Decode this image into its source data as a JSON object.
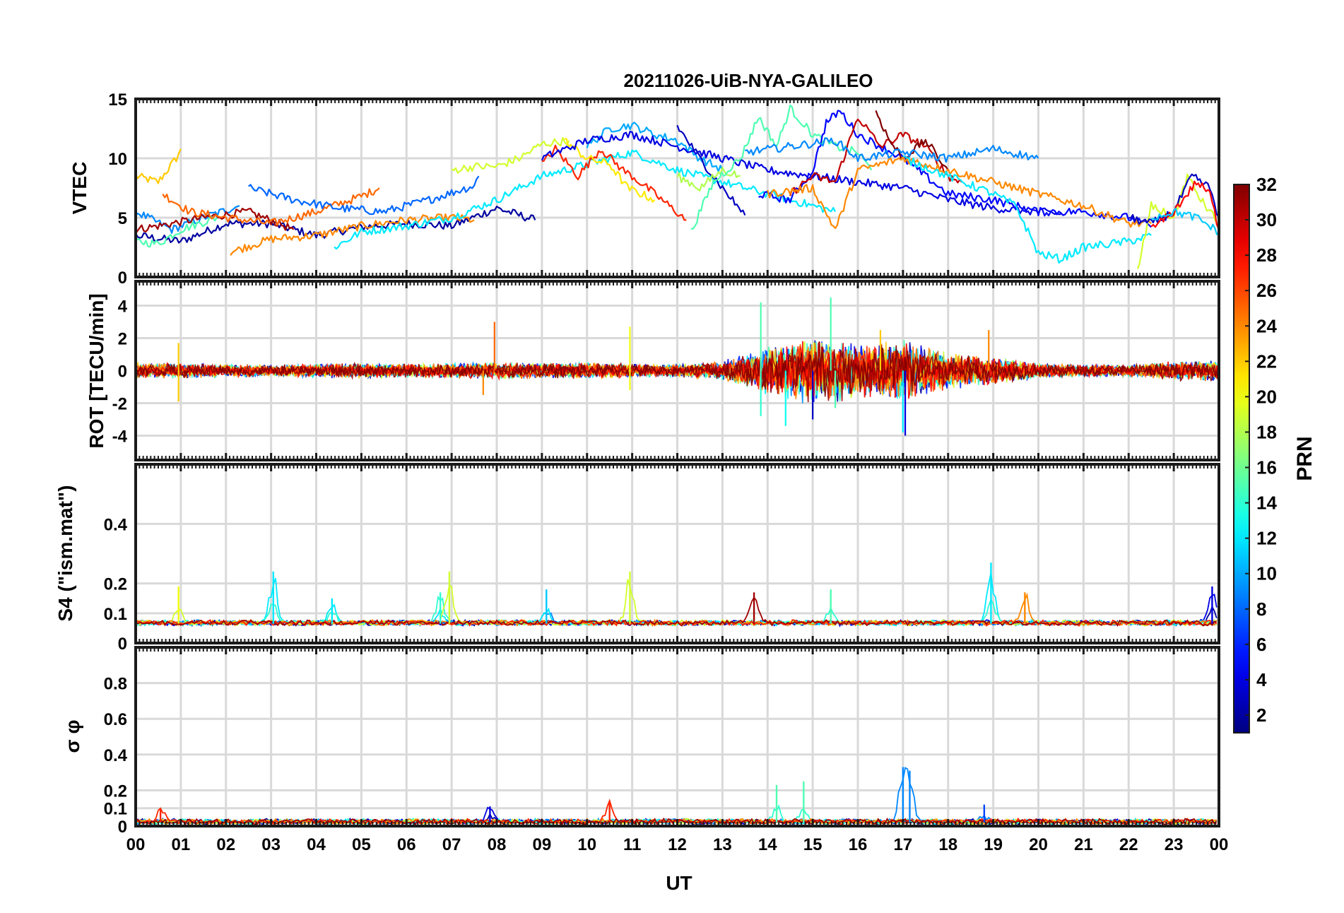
{
  "chart_data": {
    "type": "line",
    "title": "20211026-UiB-NYA-GALILEO",
    "xlabel": "UT",
    "x_ticks": [
      "00",
      "01",
      "02",
      "03",
      "04",
      "05",
      "06",
      "07",
      "08",
      "09",
      "10",
      "11",
      "12",
      "13",
      "14",
      "15",
      "16",
      "17",
      "18",
      "19",
      "20",
      "21",
      "22",
      "23",
      "00"
    ],
    "xlim": [
      0,
      24
    ],
    "grid": true,
    "colormap": "jet",
    "colorbar": {
      "label": "PRN",
      "range": [
        1,
        32
      ],
      "ticks": [
        "2",
        "4",
        "6",
        "8",
        "10",
        "12",
        "14",
        "16",
        "18",
        "20",
        "22",
        "24",
        "26",
        "28",
        "30",
        "32"
      ],
      "placement": "right"
    },
    "panels": [
      {
        "name": "vtec",
        "ylabel": "VTEC",
        "ylim": [
          0,
          15
        ],
        "y_ticks": [
          "0",
          "5",
          "10",
          "15"
        ],
        "series": [
          {
            "prn": 22,
            "x": [
              0.0,
              0.5,
              0.9,
              1.0
            ],
            "y": [
              8.5,
              8,
              10,
              10.8
            ]
          },
          {
            "prn": 2,
            "x": [
              0.0,
              1.0,
              2.0,
              3.0,
              4.0,
              5.0,
              6.0,
              7.0,
              8.0,
              8.85
            ],
            "y": [
              3.5,
              3,
              4.5,
              4.5,
              3.5,
              4.2,
              4.5,
              4.3,
              5.8,
              4.8
            ]
          },
          {
            "prn": 9,
            "x": [
              0.0,
              0.8,
              1.5,
              2.3
            ],
            "y": [
              5.5,
              4,
              5,
              6
            ]
          },
          {
            "prn": 31,
            "x": [
              0.0,
              0.8,
              1.5,
              2.5,
              3.5
            ],
            "y": [
              4,
              4.5,
              5,
              5.5,
              4
            ]
          },
          {
            "prn": 15,
            "x": [
              0.0,
              0.5,
              1.0,
              1.8
            ],
            "y": [
              3,
              2.8,
              4,
              5
            ]
          },
          {
            "prn": 25,
            "x": [
              0.6,
              1.2,
              2.0,
              3.0,
              4.0,
              5.0,
              5.4
            ],
            "y": [
              7,
              5.5,
              5,
              4.5,
              5.5,
              6.8,
              7.5
            ]
          },
          {
            "prn": 24,
            "x": [
              2.1,
              3.0,
              4.0,
              5.0,
              6.0,
              7.0,
              7.5
            ],
            "y": [
              2.1,
              3.2,
              3.5,
              4.3,
              4.8,
              5,
              4.8
            ]
          },
          {
            "prn": 8,
            "x": [
              2.5,
              3.5,
              4.5,
              5.5,
              6.5,
              7.5,
              7.6
            ],
            "y": [
              7.5,
              6.5,
              5.8,
              5.5,
              6.5,
              7.7,
              8.5
            ]
          },
          {
            "prn": 12,
            "x": [
              4.4,
              5.0,
              6.0,
              7.0,
              8.0,
              9.0,
              10.0,
              11.0,
              12.0,
              13.0,
              14.0,
              15.0,
              15.5
            ],
            "y": [
              2.5,
              3.8,
              4.3,
              5,
              6.5,
              8.5,
              9.5,
              10.5,
              9,
              8,
              7,
              6,
              5.5
            ]
          },
          {
            "prn": 19,
            "x": [
              7.0,
              7.5,
              8.0,
              8.5,
              9.0,
              9.6
            ],
            "y": [
              9,
              9.3,
              9.3,
              10,
              11.2,
              11.5
            ]
          },
          {
            "prn": 27,
            "x": [
              9.0,
              9.3,
              9.8,
              10.3,
              10.8,
              11.0,
              11.5,
              12.2
            ],
            "y": [
              9.5,
              10.8,
              8.5,
              10.8,
              9,
              8.5,
              7,
              4.8
            ]
          },
          {
            "prn": 21,
            "x": [
              9.5,
              10.0,
              10.5,
              10.9,
              11.5
            ],
            "y": [
              11.5,
              10,
              9.5,
              7.5,
              6.5
            ]
          },
          {
            "prn": 10,
            "x": [
              10.0,
              10.5,
              11.0,
              11.5,
              12.0,
              12.5,
              13.0
            ],
            "y": [
              11,
              12.5,
              12.8,
              12,
              11.5,
              10,
              9
            ]
          },
          {
            "prn": 4,
            "x": [
              9.0,
              10.0,
              11.0,
              12.0,
              13.0,
              14.0,
              15.0,
              16.0,
              17.0,
              18.0,
              19.0,
              20.0,
              20.5
            ],
            "y": [
              10,
              11.5,
              12,
              11,
              10,
              9,
              8.5,
              8,
              7.5,
              6.5,
              5.8,
              5.5,
              5.3
            ]
          },
          {
            "prn": 3,
            "x": [
              12.0,
              12.5,
              13.0,
              13.5
            ],
            "y": [
              12.7,
              10,
              7.5,
              5.2
            ]
          },
          {
            "prn": 18,
            "x": [
              12.0,
              12.5,
              13.0,
              13.4
            ],
            "y": [
              8.5,
              7.5,
              9,
              8.5
            ]
          },
          {
            "prn": 15,
            "x": [
              12.3,
              12.8,
              13.4,
              13.8,
              14.2,
              14.5,
              15.0,
              15.5,
              16.0,
              16.3
            ],
            "y": [
              3.8,
              8,
              10,
              13.5,
              11,
              14.2,
              12,
              11,
              10.5,
              9
            ]
          },
          {
            "prn": 5,
            "x": [
              13.8,
              14.5,
              15.0,
              15.3,
              15.6,
              16.0,
              16.5,
              17.0,
              17.5,
              18.0,
              19.0,
              20.0,
              21.0,
              22.0,
              22.5
            ],
            "y": [
              7,
              6.5,
              9,
              13,
              14,
              12,
              11,
              10,
              8.5,
              7,
              6.5,
              5.5,
              5.5,
              5,
              4.2
            ]
          },
          {
            "prn": 30,
            "x": [
              14.5,
              15.0,
              15.5,
              16.0,
              16.5,
              17.0,
              17.5,
              18.0,
              18.3
            ],
            "y": [
              7,
              8.5,
              8,
              13.5,
              11,
              12,
              11,
              8.5,
              8
            ]
          },
          {
            "prn": 32,
            "x": [
              16.4,
              16.7,
              17.0,
              17.5,
              18.0
            ],
            "y": [
              14,
              11.5,
              10,
              11.5,
              9
            ]
          },
          {
            "prn": 24,
            "x": [
              14.0,
              15.0,
              15.5,
              16.0,
              17.0,
              18.0,
              19.0,
              20.0,
              21.0,
              22.0,
              22.5
            ],
            "y": [
              7,
              7.5,
              4,
              9,
              10,
              9,
              8,
              7,
              6,
              4.5,
              4.5
            ]
          },
          {
            "prn": 9,
            "x": [
              13.5,
              14.5,
              15.5,
              16.0,
              17.0,
              18.0,
              19.0,
              20.0
            ],
            "y": [
              10.5,
              11,
              11.5,
              10,
              10.5,
              10,
              10.8,
              10
            ]
          },
          {
            "prn": 12,
            "x": [
              17.0,
              18.0,
              19.0,
              19.5,
              20.0,
              20.5,
              21.0,
              22.0,
              22.5
            ],
            "y": [
              10,
              8.5,
              7,
              6,
              2,
              1.5,
              2.5,
              3,
              3.5
            ]
          },
          {
            "prn": 19,
            "x": [
              22.2,
              22.5,
              23.0,
              23.3,
              23.6,
              24.0
            ],
            "y": [
              0.5,
              6,
              5,
              8.5,
              6.5,
              4.5
            ]
          },
          {
            "prn": 3,
            "x": [
              22.0,
              22.5,
              23.0,
              23.4,
              23.8,
              24.0
            ],
            "y": [
              5,
              4.5,
              5.5,
              8.5,
              7.5,
              5
            ]
          },
          {
            "prn": 28,
            "x": [
              22.5,
              23.0,
              23.5,
              23.8,
              24.0
            ],
            "y": [
              4,
              5.5,
              8,
              7,
              4
            ]
          },
          {
            "prn": 11,
            "x": [
              22.5,
              23.0,
              23.5,
              24.0
            ],
            "y": [
              5,
              5.5,
              5,
              3.8
            ]
          }
        ]
      },
      {
        "name": "rot",
        "ylabel": "ROT [TECU/min]",
        "ylim": [
          -5.5,
          5.5
        ],
        "y_ticks": [
          "-4",
          "-2",
          "0",
          "2",
          "4"
        ],
        "noise_envelope": {
          "hours": [
            0,
            1,
            2,
            3,
            4,
            5,
            6,
            7,
            8,
            9,
            10,
            11,
            12,
            13,
            14,
            15,
            16,
            17,
            18,
            19,
            20,
            21,
            22,
            23,
            24
          ],
          "amplitude": [
            0.5,
            0.5,
            0.4,
            0.4,
            0.45,
            0.5,
            0.45,
            0.5,
            0.55,
            0.5,
            0.55,
            0.45,
            0.4,
            0.6,
            1.6,
            2.2,
            1.8,
            2.0,
            1.2,
            0.9,
            0.5,
            0.4,
            0.4,
            0.6,
            0.7
          ]
        },
        "spikes": [
          {
            "x": 0.95,
            "y": 1.7,
            "prn": 22
          },
          {
            "x": 0.95,
            "y": -1.9,
            "prn": 22
          },
          {
            "x": 7.95,
            "y": 3.0,
            "prn": 25
          },
          {
            "x": 7.7,
            "y": -1.5,
            "prn": 24
          },
          {
            "x": 10.95,
            "y": 2.7,
            "prn": 20
          },
          {
            "x": 10.95,
            "y": -1.2,
            "prn": 20
          },
          {
            "x": 13.85,
            "y": 4.2,
            "prn": 15
          },
          {
            "x": 13.85,
            "y": -2.8,
            "prn": 14
          },
          {
            "x": 14.4,
            "y": -3.4,
            "prn": 13
          },
          {
            "x": 15.0,
            "y": -3.0,
            "prn": 3
          },
          {
            "x": 15.4,
            "y": 4.5,
            "prn": 15
          },
          {
            "x": 15.5,
            "y": -2.3,
            "prn": 15
          },
          {
            "x": 16.5,
            "y": 2.5,
            "prn": 22
          },
          {
            "x": 17.0,
            "y": -3.8,
            "prn": 12
          },
          {
            "x": 17.05,
            "y": -4.0,
            "prn": 4
          },
          {
            "x": 18.9,
            "y": 2.5,
            "prn": 24
          }
        ]
      },
      {
        "name": "s4",
        "ylabel": "S4 (\"ism.mat\")",
        "ylim": [
          0,
          0.6
        ],
        "y_ticks": [
          "0",
          "0.1",
          "0.2",
          "0.4"
        ],
        "baseline": 0.065,
        "peaks": [
          {
            "x": 0.95,
            "y": 0.19,
            "prn": 20
          },
          {
            "x": 3.05,
            "y": 0.24,
            "prn": 12
          },
          {
            "x": 4.35,
            "y": 0.15,
            "prn": 12
          },
          {
            "x": 6.75,
            "y": 0.17,
            "prn": 14
          },
          {
            "x": 6.95,
            "y": 0.24,
            "prn": 19
          },
          {
            "x": 9.1,
            "y": 0.18,
            "prn": 11
          },
          {
            "x": 10.95,
            "y": 0.24,
            "prn": 19
          },
          {
            "x": 13.7,
            "y": 0.17,
            "prn": 31
          },
          {
            "x": 15.4,
            "y": 0.18,
            "prn": 15
          },
          {
            "x": 18.95,
            "y": 0.27,
            "prn": 12
          },
          {
            "x": 19.7,
            "y": 0.17,
            "prn": 24
          },
          {
            "x": 23.85,
            "y": 0.19,
            "prn": 4
          }
        ]
      },
      {
        "name": "sigma_phi",
        "ylabel": "σ φ",
        "ylim": [
          0,
          1.0
        ],
        "y_ticks": [
          "0",
          "0.1",
          "0.2",
          "0.4",
          "0.6",
          "0.8"
        ],
        "baseline": 0.02,
        "peaks": [
          {
            "x": 0.55,
            "y": 0.1,
            "prn": 27
          },
          {
            "x": 7.85,
            "y": 0.11,
            "prn": 4
          },
          {
            "x": 10.5,
            "y": 0.14,
            "prn": 27
          },
          {
            "x": 14.2,
            "y": 0.23,
            "prn": 15
          },
          {
            "x": 14.8,
            "y": 0.25,
            "prn": 15
          },
          {
            "x": 17.0,
            "y": 0.33,
            "prn": 9
          },
          {
            "x": 17.15,
            "y": 0.31,
            "prn": 9
          },
          {
            "x": 18.8,
            "y": 0.12,
            "prn": 7
          }
        ]
      }
    ]
  }
}
